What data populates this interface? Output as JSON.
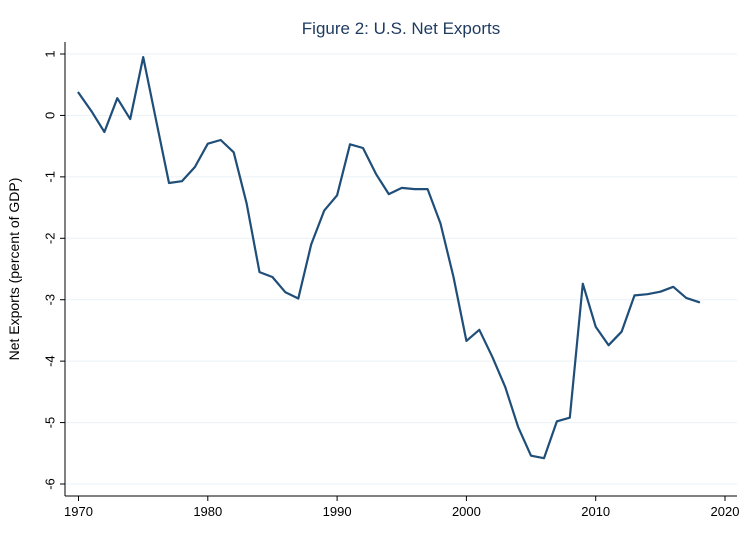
{
  "chart_data": {
    "type": "line",
    "title": "Figure 2: U.S. Net Exports",
    "xlabel": "",
    "ylabel": "Net Exports (percent of GDP)",
    "xlim": [
      1969,
      2021
    ],
    "ylim": [
      -6.3,
      1.2
    ],
    "xticks": [
      1970,
      1980,
      1990,
      2000,
      2010,
      2020
    ],
    "yticks": [
      1,
      0,
      -1,
      -2,
      -3,
      -4,
      -5,
      -6
    ],
    "grid": true,
    "legend": "none",
    "colors": {
      "line": "#1f4e79",
      "grid": "#eaf0f4",
      "title": "#1e3a5f"
    },
    "series": [
      {
        "x": [
          1970,
          1971,
          1972,
          1973,
          1974,
          1975,
          1976,
          1977,
          1978,
          1979,
          1980,
          1981,
          1982,
          1983,
          1984,
          1985,
          1986,
          1987,
          1988,
          1989,
          1990,
          1991,
          1992,
          1993,
          1994,
          1995,
          1996,
          1997,
          1998,
          1999,
          2000,
          2001,
          2002,
          2003,
          2004,
          2005,
          2006,
          2007,
          2008,
          2009,
          2010,
          2011,
          2012,
          2013,
          2014,
          2015,
          2016,
          2017,
          2018
        ],
        "values": [
          0.37,
          0.07,
          -0.27,
          0.28,
          -0.06,
          0.95,
          -0.08,
          -1.1,
          -1.07,
          -0.84,
          -0.46,
          -0.4,
          -0.6,
          -1.43,
          -2.55,
          -2.63,
          -2.88,
          -2.98,
          -2.1,
          -1.55,
          -1.3,
          -0.47,
          -0.53,
          -0.95,
          -1.28,
          -1.18,
          -1.2,
          -1.2,
          -1.76,
          -2.63,
          -3.67,
          -3.49,
          -3.93,
          -4.42,
          -5.07,
          -5.54,
          -5.58,
          -4.98,
          -4.92,
          -2.74,
          -3.44,
          -3.74,
          -3.52,
          -2.93,
          -2.91,
          -2.87,
          -2.79,
          -2.97,
          -3.04
        ]
      }
    ]
  }
}
